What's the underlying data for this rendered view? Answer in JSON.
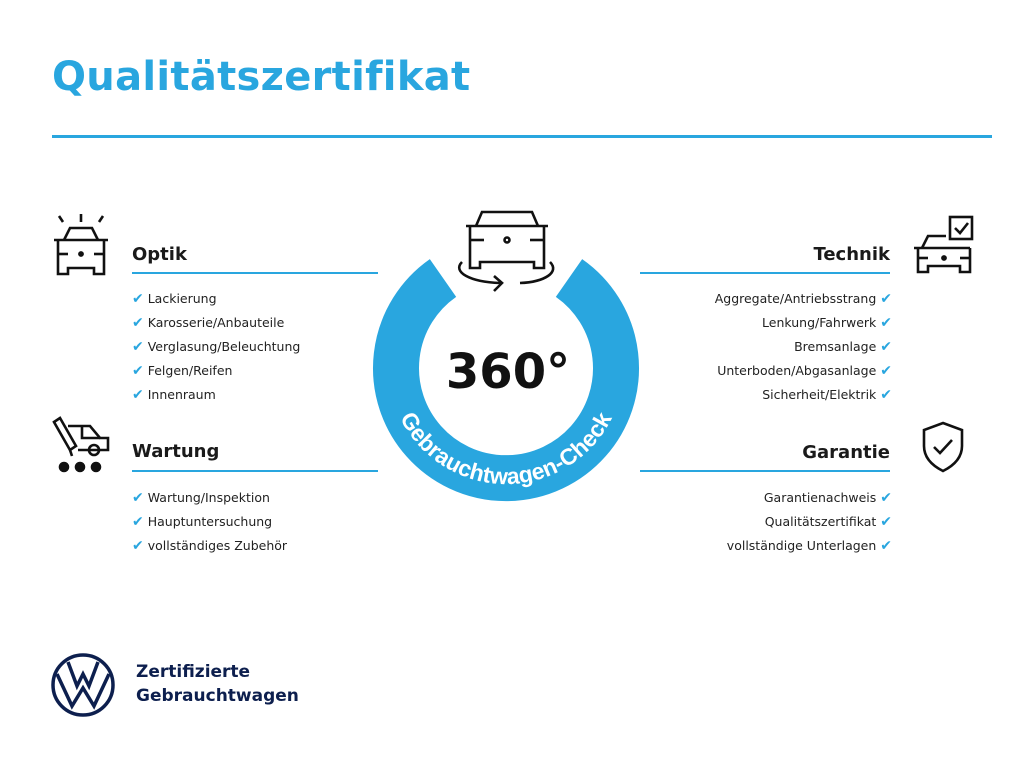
{
  "title": "Qualitätszertifikat",
  "colors": {
    "accent": "#29a6df",
    "brand_navy": "#0d1f4e"
  },
  "center": {
    "value": "360°",
    "ring_label": "Gebrauchtwagen-Check",
    "icon": "car-rotate-icon"
  },
  "sections": {
    "optik": {
      "title": "Optik",
      "icon": "car-lights-icon",
      "items": [
        "Lackierung",
        "Karosserie/Anbauteile",
        "Verglasung/Beleuchtung",
        "Felgen/Reifen",
        "Innenraum"
      ]
    },
    "wartung": {
      "title": "Wartung",
      "icon": "service-van-icon",
      "items": [
        "Wartung/Inspektion",
        "Hauptuntersuchung",
        "vollständiges Zubehör"
      ]
    },
    "technik": {
      "title": "Technik",
      "icon": "car-checkbox-icon",
      "items": [
        "Aggregate/Antriebsstrang",
        "Lenkung/Fahrwerk",
        "Bremsanlage",
        "Unterboden/Abgasanlage",
        "Sicherheit/Elektrik"
      ]
    },
    "garantie": {
      "title": "Garantie",
      "icon": "shield-check-icon",
      "items": [
        "Garantienachweis",
        "Qualitätszertifikat",
        "vollständige Unterlagen"
      ]
    }
  },
  "check_mark": "✔",
  "brand": {
    "line1": "Zertifizierte",
    "line2": "Gebrauchtwagen",
    "logo": "vw-logo"
  }
}
